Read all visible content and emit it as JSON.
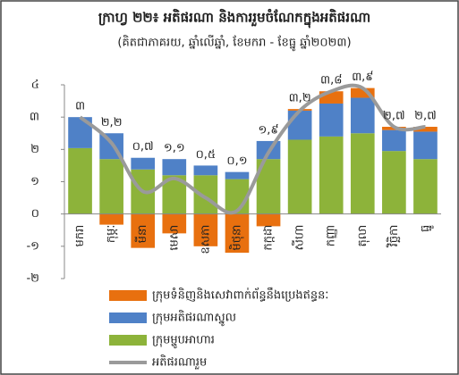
{
  "chart_data": {
    "type": "bar",
    "title": "ក្រាហ្វ ២២៖ អតិផរណា និងការរួមចំណែកក្នុងអតិផរណា",
    "subtitle": "(គិតជាភាគរយ, ឆ្នាំលើឆ្នាំ, ខែមករា - ខែធ្នូ ឆ្នាំ២០២៣)",
    "categories": [
      "មករា",
      "កុម្ភៈ",
      "មីនា",
      "មេសា",
      "ឧសភា",
      "មិថុនា",
      "កក្កដា",
      "សីហា",
      "កញ្ញា",
      "តុលា",
      "វិច្ឆិកា",
      "ធ្នូ"
    ],
    "series": [
      {
        "name": "ក្រុមទំនិញនិងសេវាពាក់ព័ន្ធនឹងប្រេងឥន្ធនៈ",
        "type": "bar",
        "color": "#e8700f",
        "values": [
          0,
          -0.33,
          -1.05,
          -0.6,
          -1.0,
          -1.2,
          -0.38,
          0.05,
          0.38,
          0.3,
          0.1,
          0.15
        ]
      },
      {
        "name": "ក្រុមអតិផរណាស្នូល",
        "type": "bar",
        "color": "#4f81c7",
        "values": [
          0.96,
          0.8,
          0.36,
          0.5,
          0.3,
          0.22,
          0.56,
          0.9,
          1.02,
          1.1,
          0.65,
          0.85
        ]
      },
      {
        "name": "ក្រុមម្ហូបអាហារ",
        "type": "bar",
        "color": "#8db33a",
        "values": [
          2.04,
          1.7,
          1.38,
          1.2,
          1.2,
          1.08,
          1.7,
          2.3,
          2.4,
          2.5,
          1.95,
          1.7
        ]
      },
      {
        "name": "អតិផរណារួម",
        "type": "line",
        "color": "#9a9a9a",
        "values": [
          3.0,
          2.2,
          0.7,
          1.1,
          0.5,
          0.1,
          1.9,
          3.2,
          3.8,
          3.9,
          2.7,
          2.7
        ],
        "value_labels": [
          "៣",
          "២,២",
          "០,៧",
          "១,១",
          "០,៥",
          "០,១",
          "១,៩",
          "៣,២",
          "៣,៨",
          "៣,៩",
          "២,៧",
          "២,៧"
        ]
      }
    ],
    "ylim": [
      -2,
      4
    ],
    "yticks": [
      {
        "value": 4,
        "label": "៤"
      },
      {
        "value": 3,
        "label": "៣"
      },
      {
        "value": 2,
        "label": "២"
      },
      {
        "value": 1,
        "label": "១"
      },
      {
        "value": 0,
        "label": "០"
      },
      {
        "value": -1,
        "label": "-១"
      },
      {
        "value": -2,
        "label": "-២"
      }
    ]
  }
}
